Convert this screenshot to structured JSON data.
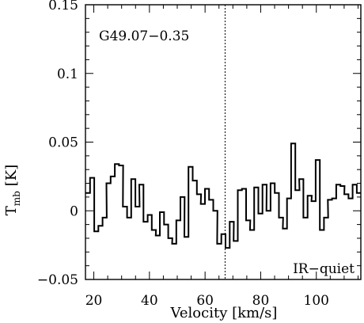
{
  "chart_data": {
    "type": "line",
    "style": "step",
    "xlabel": "Velocity [km/s]",
    "ylabel_main": "T",
    "ylabel_sub": "mb",
    "ylabel_unit": "[K]",
    "xlim": [
      17,
      116
    ],
    "ylim": [
      -0.05,
      0.15
    ],
    "xticks": [
      20,
      40,
      60,
      80,
      100
    ],
    "yticks": [
      -0.05,
      0,
      0.05,
      0.1,
      0.15
    ],
    "ytick_labels": [
      "−0.05",
      "0",
      "0.05",
      "0.1",
      "0.15"
    ],
    "xtick_labels": [
      "20",
      "40",
      "60",
      "80",
      "100"
    ],
    "source_label": "G49.07−0.35",
    "corner_label": "IR−quiet",
    "vline_x": 67.2,
    "grid": false,
    "series": [
      {
        "x": [
          17.9,
          19.4,
          20.9,
          22.4,
          23.9,
          25.3,
          26.8,
          28.3,
          29.8,
          31.2,
          32.7,
          34.2,
          35.7,
          37.1,
          38.6,
          40.1,
          41.6,
          43.0,
          44.5,
          46.0,
          47.5,
          48.9,
          50.4,
          51.9,
          53.3,
          54.8,
          56.3,
          57.8,
          59.2,
          60.7,
          62.2,
          63.7,
          65.1,
          66.6,
          68.1,
          69.6,
          71.0,
          72.5,
          74.0,
          75.5,
          76.9,
          78.4,
          79.9,
          81.4,
          82.8,
          84.3,
          85.8,
          87.3,
          88.7,
          90.2,
          91.7,
          93.2,
          94.6,
          96.1,
          97.6,
          99.0,
          100.5,
          102.0,
          103.5,
          104.9,
          106.4,
          107.9,
          109.4,
          110.8,
          112.3,
          113.8,
          115.3
        ],
        "values": [
          0.013,
          0.024,
          -0.015,
          -0.011,
          -0.005,
          0.02,
          0.025,
          0.034,
          0.033,
          0.003,
          -0.005,
          0.023,
          0.003,
          0.019,
          -0.008,
          -0.003,
          -0.014,
          -0.018,
          -0.001,
          -0.01,
          -0.02,
          -0.024,
          -0.007,
          0.01,
          -0.019,
          0.032,
          0.022,
          0.012,
          0.005,
          0.016,
          0.008,
          0.0,
          -0.024,
          -0.017,
          -0.027,
          -0.008,
          -0.022,
          0.015,
          0.016,
          -0.007,
          -0.014,
          0.017,
          -0.002,
          0.019,
          0.0,
          0.02,
          0.013,
          -0.005,
          -0.013,
          0.009,
          0.049,
          0.015,
          0.023,
          -0.005,
          0.011,
          0.007,
          0.037,
          -0.014,
          -0.005,
          0.008,
          0.009,
          0.019,
          0.018,
          0.012,
          0.009,
          0.019,
          0.013
        ]
      }
    ]
  }
}
